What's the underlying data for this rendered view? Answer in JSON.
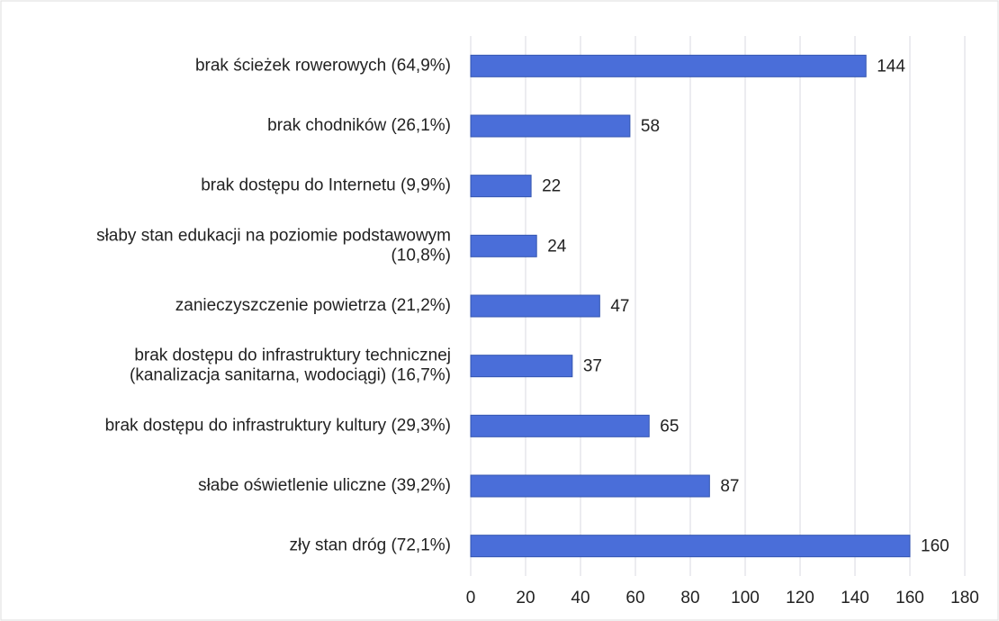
{
  "chart_data": {
    "type": "barh",
    "categories": [
      "brak ścieżek rowerowych (64,9%)",
      "brak chodników (26,1%)",
      "brak dostępu do Internetu (9,9%)",
      "słaby stan edukacji na poziomie podstawowym\n(10,8%)",
      "zanieczyszczenie powietrza (21,2%)",
      "brak dostępu do infrastruktury technicznej\n(kanalizacja sanitarna, wodociągi) (16,7%)",
      "brak dostępu do infrastruktury kultury (29,3%)",
      "słabe oświetlenie uliczne (39,2%)",
      "zły stan dróg (72,1%)"
    ],
    "values": [
      144,
      58,
      22,
      24,
      47,
      37,
      65,
      87,
      160
    ],
    "color": "#4a6ed9",
    "xlim": [
      0,
      180
    ],
    "xticks": [
      0,
      20,
      40,
      60,
      80,
      100,
      120,
      140,
      160,
      180
    ],
    "grid": true
  }
}
